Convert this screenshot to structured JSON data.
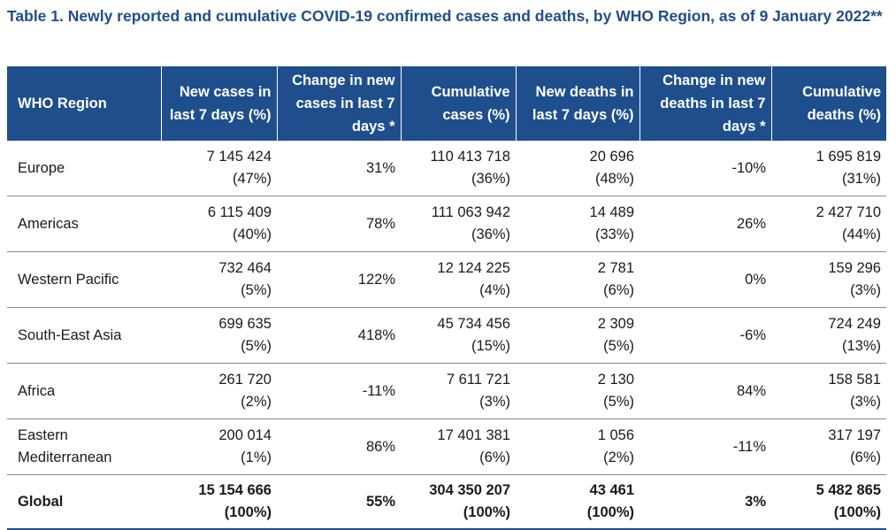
{
  "caption": "Table 1. Newly reported and cumulative COVID-19 confirmed cases and deaths, by WHO Region, as of 9 January 2022**",
  "headers": {
    "region": "WHO Region",
    "new_cases": "New cases in last 7 days (%)",
    "change_cases": "Change in new cases in last 7 days *",
    "cum_cases": "Cumulative cases (%)",
    "new_deaths": "New deaths in last 7 days (%)",
    "change_deaths": "Change in new deaths in last 7 days *",
    "cum_deaths": "Cumulative deaths (%)"
  },
  "rows": [
    {
      "region": "Europe",
      "new_cases": "7 145 424",
      "new_cases_pct": "(47%)",
      "change_cases": "31%",
      "cum_cases": "110 413 718",
      "cum_cases_pct": "(36%)",
      "new_deaths": "20 696",
      "new_deaths_pct": "(48%)",
      "change_deaths": "-10%",
      "cum_deaths": "1 695 819",
      "cum_deaths_pct": "(31%)"
    },
    {
      "region": "Americas",
      "new_cases": "6 115 409",
      "new_cases_pct": "(40%)",
      "change_cases": "78%",
      "cum_cases": "111 063 942",
      "cum_cases_pct": "(36%)",
      "new_deaths": "14 489",
      "new_deaths_pct": "(33%)",
      "change_deaths": "26%",
      "cum_deaths": "2 427 710",
      "cum_deaths_pct": "(44%)"
    },
    {
      "region": "Western Pacific",
      "new_cases": "732 464",
      "new_cases_pct": "(5%)",
      "change_cases": "122%",
      "cum_cases": "12 124 225",
      "cum_cases_pct": "(4%)",
      "new_deaths": "2 781",
      "new_deaths_pct": "(6%)",
      "change_deaths": "0%",
      "cum_deaths": "159 296",
      "cum_deaths_pct": "(3%)"
    },
    {
      "region": "South-East Asia",
      "new_cases": "699 635",
      "new_cases_pct": "(5%)",
      "change_cases": "418%",
      "cum_cases": "45 734 456",
      "cum_cases_pct": "(15%)",
      "new_deaths": "2 309",
      "new_deaths_pct": "(5%)",
      "change_deaths": "-6%",
      "cum_deaths": "724 249",
      "cum_deaths_pct": "(13%)"
    },
    {
      "region": "Africa",
      "new_cases": "261 720",
      "new_cases_pct": "(2%)",
      "change_cases": "-11%",
      "cum_cases": "7 611 721",
      "cum_cases_pct": "(3%)",
      "new_deaths": "2 130",
      "new_deaths_pct": "(5%)",
      "change_deaths": "84%",
      "cum_deaths": "158 581",
      "cum_deaths_pct": "(3%)"
    },
    {
      "region": "Eastern Mediterranean",
      "new_cases": "200 014",
      "new_cases_pct": "(1%)",
      "change_cases": "86%",
      "cum_cases": "17 401 381",
      "cum_cases_pct": "(6%)",
      "new_deaths": "1 056",
      "new_deaths_pct": "(2%)",
      "change_deaths": "-11%",
      "cum_deaths": "317 197",
      "cum_deaths_pct": "(6%)"
    }
  ],
  "total": {
    "region": "Global",
    "new_cases": "15 154 666",
    "new_cases_pct": "(100%)",
    "change_cases": "55%",
    "cum_cases": "304 350 207",
    "cum_cases_pct": "(100%)",
    "new_deaths": "43 461",
    "new_deaths_pct": "(100%)",
    "change_deaths": "3%",
    "cum_deaths": "5 482 865",
    "cum_deaths_pct": "(100%)"
  },
  "colors": {
    "header_bg": "#1f4e8c",
    "caption": "#1f4e8c",
    "rule": "#8a8a8a"
  }
}
